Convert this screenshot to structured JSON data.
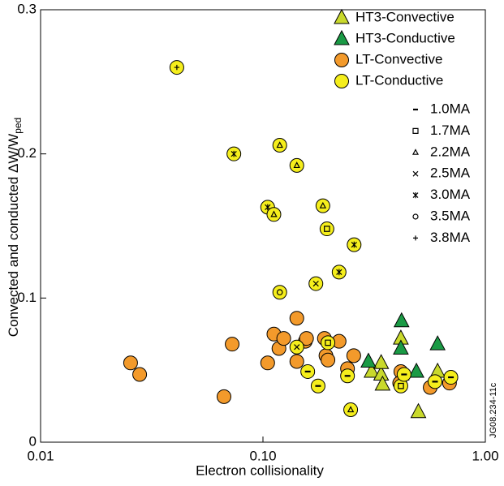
{
  "chart_data": {
    "type": "scatter",
    "xlabel": "Electron collisionality",
    "ylabel": "Convected and conducted ΔW/W",
    "ylabel_sub": "ped",
    "figure_id": "JG08.234-11c",
    "xscale": "log",
    "xlim": [
      0.01,
      1
    ],
    "ylim": [
      0,
      0.3
    ],
    "xticks": [
      0.01,
      {
        "value": 0.1,
        "label": "0.10"
      },
      {
        "value": 1,
        "label": "1.00"
      }
    ],
    "yticks": [
      0,
      0.1,
      0.2,
      0.3
    ],
    "series": [
      {
        "name": "HT3-Convective",
        "marker": "triangle",
        "color": "#c9d92c",
        "x": [
          0.308,
          0.34,
          0.345,
          0.417,
          0.42,
          0.5,
          0.61,
          0.34
        ],
        "values": [
          0.049,
          0.047,
          0.04,
          0.072,
          0.047,
          0.021,
          0.049,
          0.055
        ]
      },
      {
        "name": "HT3-Conductive",
        "marker": "triangle",
        "color": "#1a9a45",
        "x": [
          0.298,
          0.42,
          0.417,
          0.49,
          0.61
        ],
        "values": [
          0.056,
          0.084,
          0.065,
          0.049,
          0.068
        ]
      },
      {
        "name": "LT-Convective",
        "marker": "circle",
        "color": "#f39a2b",
        "x": [
          0.0254,
          0.0279,
          0.0668,
          0.0727,
          0.105,
          0.112,
          0.118,
          0.124,
          0.142,
          0.142,
          0.155,
          0.157,
          0.189,
          0.192,
          0.196,
          0.22,
          0.256,
          0.24,
          0.417,
          0.412,
          0.565,
          0.69
        ],
        "values": [
          0.055,
          0.047,
          0.0316,
          0.068,
          0.055,
          0.075,
          0.065,
          0.072,
          0.086,
          0.056,
          0.07,
          0.072,
          0.072,
          0.06,
          0.057,
          0.07,
          0.06,
          0.051,
          0.049,
          0.041,
          0.038,
          0.041
        ]
      },
      {
        "name": "LT-Conductive",
        "marker": "circle",
        "color": "#f5ee1c",
        "x": [
          0.041,
          0.074,
          0.119,
          0.142,
          0.105,
          0.112,
          0.186,
          0.194,
          0.257,
          0.22,
          0.173,
          0.119,
          0.142,
          0.159,
          0.177,
          0.196,
          0.24,
          0.248,
          0.417,
          0.431,
          0.594,
          0.7
        ],
        "values": [
          0.26,
          0.2,
          0.206,
          0.192,
          0.163,
          0.158,
          0.164,
          0.148,
          0.137,
          0.118,
          0.11,
          0.104,
          0.066,
          0.049,
          0.039,
          0.069,
          0.046,
          0.0225,
          0.039,
          0.047,
          0.042,
          0.045
        ],
        "currents": [
          "3.8MA",
          "3.0MA",
          "2.2MA",
          "2.2MA",
          "3.0MA",
          "2.2MA",
          "2.2MA",
          "1.7MA",
          "3.0MA",
          "3.0MA",
          "2.5MA",
          "3.5MA",
          "2.5MA",
          "1.0MA",
          "1.0MA",
          "1.7MA",
          "1.0MA",
          "2.2MA",
          "1.7MA",
          "1.0MA",
          "1.0MA",
          "1.0MA"
        ]
      }
    ],
    "current_legend": [
      {
        "label": "1.0MA",
        "symbol": "dash"
      },
      {
        "label": "1.7MA",
        "symbol": "square"
      },
      {
        "label": "2.2MA",
        "symbol": "triangle"
      },
      {
        "label": "2.5MA",
        "symbol": "cross"
      },
      {
        "label": "3.0MA",
        "symbol": "star"
      },
      {
        "label": "3.5MA",
        "symbol": "circle"
      },
      {
        "label": "3.8MA",
        "symbol": "plus"
      }
    ]
  }
}
